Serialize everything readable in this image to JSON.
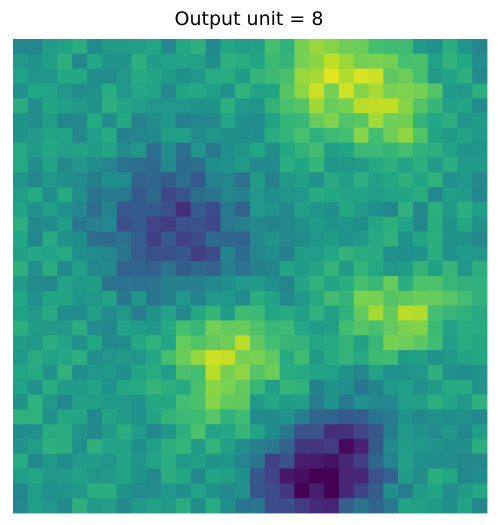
{
  "chart_data": {
    "type": "heatmap",
    "title": "Output unit = 8",
    "xlabel": "",
    "ylabel": "",
    "axes": "off",
    "grid": false,
    "colormap": "viridis",
    "vmin": 0,
    "vmax": 1,
    "rows": 32,
    "cols": 32,
    "blobs": [
      {
        "type": "high",
        "row": 2.3,
        "col": 21.6,
        "sigma_r": 2.8,
        "sigma_c": 2.9,
        "amp": 0.34
      },
      {
        "type": "high",
        "row": 4.5,
        "col": 25.5,
        "sigma_r": 2.2,
        "sigma_c": 1.8,
        "amp": 0.2
      },
      {
        "type": "high",
        "row": 18.0,
        "col": 25.5,
        "sigma_r": 1.8,
        "sigma_c": 2.6,
        "amp": 0.3
      },
      {
        "type": "high",
        "row": 20.5,
        "col": 14.5,
        "sigma_r": 1.8,
        "sigma_c": 3.2,
        "amp": 0.25
      },
      {
        "type": "high",
        "row": 23.5,
        "col": 13.5,
        "sigma_r": 2.6,
        "sigma_c": 1.6,
        "amp": 0.2
      },
      {
        "type": "low",
        "row": 12.2,
        "col": 10.5,
        "sigma_r": 3.3,
        "sigma_c": 3.5,
        "amp": 0.36
      },
      {
        "type": "low",
        "row": 29.2,
        "col": 19.5,
        "sigma_r": 2.3,
        "sigma_c": 2.7,
        "amp": 0.48
      },
      {
        "type": "low",
        "row": 27.0,
        "col": 22.5,
        "sigma_r": 2.5,
        "sigma_c": 2.0,
        "amp": 0.25
      }
    ],
    "base": 0.55,
    "noise": 0.09,
    "seed": 12345
  }
}
